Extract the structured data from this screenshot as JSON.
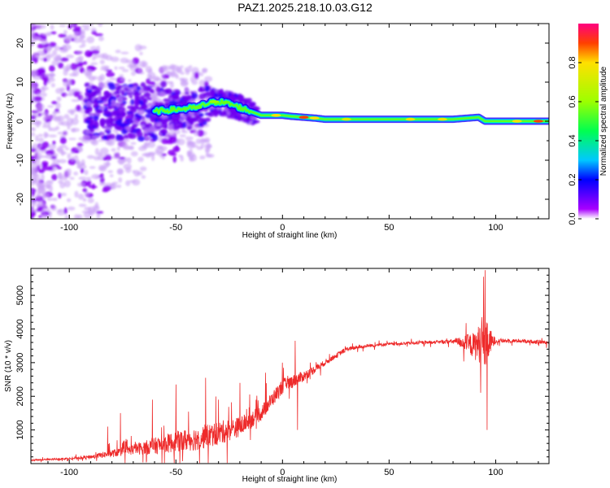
{
  "title": "PAZ1.2025.218.10.03.G12",
  "chart_data": [
    {
      "type": "heatmap",
      "xlabel": "Height of straight line (km)",
      "ylabel": "Frequency (Hz)",
      "xlim": [
        -118,
        125
      ],
      "ylim": [
        -25,
        25
      ],
      "x_ticks": [
        -100,
        -50,
        0,
        50,
        100
      ],
      "y_ticks": [
        -20,
        -10,
        0,
        10,
        20
      ],
      "colorbar": {
        "label": "Normalized spectral amplitude",
        "range": [
          0,
          1
        ],
        "ticks": [
          0.0,
          0.2,
          0.4,
          0.6,
          0.8
        ],
        "tick_labels": [
          "0.0",
          "0.2",
          "0.4",
          "0.6",
          "0.8"
        ],
        "colors": [
          "#ffffff",
          "#a800ff",
          "#0000ff",
          "#00c8ff",
          "#00ff50",
          "#9cff00",
          "#ffe000",
          "#ff4000",
          "#ff0080"
        ]
      },
      "ridge": {
        "x": [
          -60,
          -50,
          -40,
          -35,
          -30,
          -25,
          -20,
          -15,
          -10,
          -5,
          0,
          5,
          10,
          15,
          20,
          30,
          50,
          80,
          92,
          95,
          100,
          125
        ],
        "y": [
          2.5,
          3,
          3.5,
          4.5,
          5,
          4.5,
          3.5,
          2.5,
          1.5,
          1.5,
          1.5,
          1.2,
          1,
          0.8,
          0.5,
          0.5,
          0.5,
          0.5,
          1,
          0,
          0,
          0
        ]
      },
      "noise_region": {
        "x": [
          -118,
          -40
        ],
        "y": [
          -25,
          25
        ]
      }
    },
    {
      "type": "line",
      "xlabel": "Height of straight line (km)",
      "ylabel": "SNR (10 * v/v)",
      "xlim": [
        -118,
        125
      ],
      "ylim": [
        0,
        5800
      ],
      "x_ticks": [
        -100,
        -50,
        0,
        50,
        100
      ],
      "y_ticks": [
        1000,
        2000,
        3000,
        4000,
        5000
      ],
      "color": "#ee2a2a",
      "series": [
        {
          "x": [
            -118,
            -100,
            -90,
            -80,
            -70,
            -60,
            -50,
            -40,
            -30,
            -20,
            -10,
            0,
            10,
            20,
            30,
            40,
            50,
            60,
            70,
            80,
            85,
            90,
            93,
            95,
            97,
            100,
            110,
            125
          ],
          "values": [
            100,
            150,
            200,
            300,
            420,
            520,
            650,
            750,
            900,
            1100,
            1500,
            2300,
            2600,
            3000,
            3400,
            3500,
            3550,
            3580,
            3600,
            3630,
            3600,
            3500,
            3600,
            3500,
            3600,
            3650,
            3650,
            3600
          ],
          "amplitude": [
            50,
            60,
            120,
            250,
            350,
            550,
            700,
            800,
            800,
            650,
            500,
            500,
            350,
            180,
            150,
            110,
            100,
            100,
            100,
            150,
            450,
            900,
            1400,
            1800,
            1000,
            150,
            120,
            120
          ]
        }
      ]
    }
  ]
}
